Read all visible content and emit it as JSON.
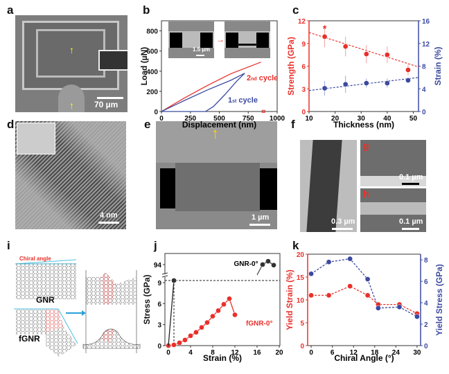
{
  "panels": {
    "a": "a",
    "b": "b",
    "c": "c",
    "d": "d",
    "e": "e",
    "f": "f",
    "g": "g",
    "h": "h",
    "i": "i",
    "j": "j",
    "k": "k"
  },
  "scale_bars": {
    "a": "70 µm",
    "b_inset": "1.5 µm",
    "d": "4 nm",
    "e": "1 µm",
    "f": "0.3 µm",
    "g": "0.1 µm",
    "h": "0.1 µm"
  },
  "schematic": {
    "chiral_angle": "Chiral angle",
    "gnr": "GNR",
    "fgnr": "fGNR"
  },
  "colors": {
    "red": "#e8302a",
    "blue": "#3b4aa0"
  },
  "chart_data": [
    {
      "id": "b",
      "type": "line",
      "xlabel": "Displacement (nm)",
      "ylabel": "Load (µN)",
      "xlim": [
        0,
        1000
      ],
      "ylim": [
        0,
        900
      ],
      "xticks": [
        0,
        250,
        500,
        750,
        1000
      ],
      "yticks": [
        0,
        200,
        400,
        600,
        800
      ],
      "series": [
        {
          "name": "2nd cycle",
          "label_main": "2",
          "label_sup": "nd",
          "label_rest": " cycle",
          "color": "#e8302a",
          "x": [
            0,
            200,
            400,
            600,
            860
          ],
          "y": [
            0,
            135,
            260,
            375,
            490
          ]
        },
        {
          "name": "1st cycle",
          "label_main": "1",
          "label_sup": "st",
          "label_rest": " cycle",
          "color": "#3b4aa0",
          "x": [
            0,
            200,
            400,
            600,
            720,
            650,
            550,
            450,
            380,
            0
          ],
          "y": [
            0,
            110,
            215,
            310,
            380,
            300,
            170,
            50,
            0,
            0
          ]
        }
      ]
    },
    {
      "id": "c",
      "type": "scatter",
      "xlabel": "Thickness (nm)",
      "ylabel": "Strength (GPa)",
      "y2label": "Strain (%)",
      "xlim": [
        10,
        52
      ],
      "ylim": [
        0,
        12
      ],
      "y2lim": [
        0,
        16
      ],
      "xticks": [
        10,
        20,
        30,
        40,
        50
      ],
      "yticks": [
        0,
        3,
        6,
        9,
        12
      ],
      "y2ticks": [
        0,
        4,
        8,
        12,
        16
      ],
      "x": [
        16,
        24,
        32,
        40,
        48
      ],
      "strength": [
        9.9,
        8.6,
        7.6,
        7.5,
        5.5
      ],
      "strength_err": [
        1.4,
        1.3,
        1.2,
        1.1,
        0.7
      ],
      "strain": [
        4.1,
        4.8,
        5.0,
        5.0,
        5.5
      ],
      "strain_err": [
        1.3,
        1.5,
        0.8,
        0.8,
        0.5
      ],
      "strength_fit": [
        [
          10,
          10.45
        ],
        [
          52,
          5.9
        ]
      ],
      "strain_fit": [
        [
          10,
          3.7
        ],
        [
          52,
          6.0
        ]
      ],
      "annotation": "*"
    },
    {
      "id": "j",
      "type": "line",
      "xlabel": "Strain (%)",
      "ylabel": "Stress (GPa)",
      "xlim": [
        0,
        20
      ],
      "ylim": [
        0,
        9.8
      ],
      "xticks": [
        0,
        4,
        8,
        12,
        16,
        20
      ],
      "yticks": [
        0,
        3,
        6,
        9
      ],
      "upper_tick": 94,
      "series": [
        {
          "name": "fGNR-0°",
          "color": "#e8302a",
          "x": [
            0,
            1,
            2,
            3,
            4,
            5,
            6,
            7,
            8,
            9,
            10,
            11,
            12
          ],
          "y": [
            0,
            0.1,
            0.4,
            0.8,
            1.4,
            1.9,
            2.6,
            3.3,
            4.2,
            5.0,
            5.9,
            6.7,
            4.4
          ]
        },
        {
          "name": "GNR-0°",
          "color": "#222222",
          "x": [
            0,
            1
          ],
          "y": [
            0,
            9.3
          ],
          "upper_x": [
            17,
            18,
            19
          ],
          "upper_y": [
            94,
            94.6,
            93.9
          ]
        }
      ]
    },
    {
      "id": "k",
      "type": "line",
      "xlabel": "Chiral Angle (°)",
      "ylabel": "Yield Strain (%)",
      "y2label": "Yield Stress (GPa)",
      "xlim": [
        -1,
        31
      ],
      "ylim": [
        0,
        20
      ],
      "y2lim": [
        0,
        8.4
      ],
      "xticks": [
        0,
        6,
        12,
        18,
        24,
        30
      ],
      "yticks": [
        0,
        5,
        10,
        15,
        20
      ],
      "y2ticks": [
        0,
        2,
        4,
        6,
        8
      ],
      "x": [
        0,
        5,
        11,
        16,
        19,
        25,
        30
      ],
      "yield_strain": [
        11,
        11,
        13,
        11,
        9,
        9,
        7
      ],
      "yield_stress": [
        6.7,
        7.8,
        8.1,
        6.2,
        3.5,
        3.6,
        2.7
      ]
    }
  ]
}
